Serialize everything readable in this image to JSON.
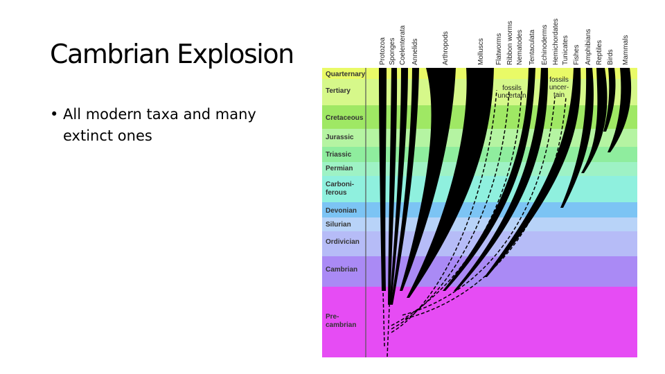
{
  "slide": {
    "title": "Cambrian Explosion",
    "bullet_marker": "•",
    "bullets": [
      "All modern taxa and many extinct ones"
    ]
  },
  "diagram": {
    "periods": [
      {
        "label": "Quarternary",
        "color": "#e9fa67"
      },
      {
        "label": "Tertiary",
        "color": "#d6f88a"
      },
      {
        "label": "Cretaceous",
        "color": "#9fe864"
      },
      {
        "label": "Jurassic",
        "color": "#b5f4a2"
      },
      {
        "label": "Triassic",
        "color": "#8fed9e"
      },
      {
        "label": "Permian",
        "color": "#9ef2c5"
      },
      {
        "label": "Carboni-",
        "label2": "ferous",
        "color": "#8ff0de"
      },
      {
        "label": "Devonian",
        "color": "#7cc4f4"
      },
      {
        "label": "Silurian",
        "color": "#b8d3f8"
      },
      {
        "label": "Ordivician",
        "color": "#b6bcf7"
      },
      {
        "label": "Cambrian",
        "color": "#aa8af5"
      },
      {
        "label": "Pre-",
        "label2": "cambrian",
        "color": "#e64cf4"
      }
    ],
    "taxa": [
      "Protozoa",
      "Sponges",
      "Coelenterata",
      "Annelids",
      "Arthropods",
      "Molluscs",
      "Flatworms",
      "Ribbon worms",
      "Nematodes",
      "Tentaculata",
      "Echinoderms",
      "Hemichordates",
      "Tunicates",
      "Fishes",
      "Amphibians",
      "Reptiles",
      "Birds",
      "Mammals"
    ],
    "notes": [
      {
        "lines": [
          "fossils",
          "uncertain"
        ]
      },
      {
        "lines": [
          "fossils",
          "uncer-",
          "tain"
        ]
      }
    ]
  }
}
